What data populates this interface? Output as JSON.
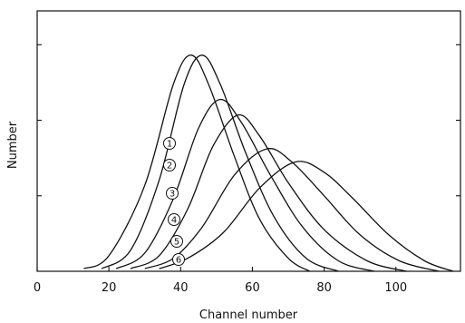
{
  "chart_data": {
    "type": "line",
    "xlabel": "Channel number",
    "ylabel": "Number",
    "xlim": [
      0,
      118
    ],
    "ylim": [
      0,
      1
    ],
    "x_ticks": [
      0,
      20,
      40,
      60,
      80,
      100
    ],
    "y_ticks_labeled": false,
    "grid": false,
    "series": [
      {
        "name": "1",
        "peak_x": 43,
        "peak_y": 0.83,
        "start_x": 13,
        "end_x": 76,
        "x": [
          13,
          20,
          30,
          38,
          43,
          48,
          55,
          62,
          70,
          76
        ],
        "y": [
          0.01,
          0.06,
          0.33,
          0.72,
          0.83,
          0.71,
          0.44,
          0.2,
          0.05,
          0.0
        ]
      },
      {
        "name": "2",
        "peak_x": 46,
        "peak_y": 0.83,
        "start_x": 18,
        "end_x": 84,
        "x": [
          18,
          26,
          34,
          41,
          46,
          51,
          58,
          66,
          75,
          84
        ],
        "y": [
          0.01,
          0.08,
          0.35,
          0.72,
          0.83,
          0.72,
          0.46,
          0.21,
          0.05,
          0.0
        ]
      },
      {
        "name": "3",
        "peak_x": 51,
        "peak_y": 0.66,
        "start_x": 22,
        "end_x": 94,
        "x": [
          22,
          30,
          38,
          45,
          51,
          57,
          65,
          74,
          84,
          94
        ],
        "y": [
          0.01,
          0.07,
          0.28,
          0.55,
          0.66,
          0.57,
          0.37,
          0.17,
          0.04,
          0.0
        ]
      },
      {
        "name": "4",
        "peak_x": 56,
        "peak_y": 0.6,
        "start_x": 26,
        "end_x": 103,
        "x": [
          26,
          34,
          42,
          49,
          56,
          62,
          70,
          80,
          92,
          103
        ],
        "y": [
          0.01,
          0.06,
          0.24,
          0.48,
          0.6,
          0.52,
          0.34,
          0.16,
          0.04,
          0.0
        ]
      },
      {
        "name": "5",
        "peak_x": 64,
        "peak_y": 0.47,
        "start_x": 30,
        "end_x": 112,
        "x": [
          30,
          38,
          46,
          55,
          64,
          71,
          80,
          90,
          101,
          112
        ],
        "y": [
          0.01,
          0.05,
          0.17,
          0.37,
          0.47,
          0.42,
          0.29,
          0.14,
          0.04,
          0.0
        ]
      },
      {
        "name": "6",
        "peak_x": 72,
        "peak_y": 0.42,
        "start_x": 34,
        "end_x": 116,
        "x": [
          34,
          42,
          52,
          62,
          72,
          80,
          88,
          98,
          108,
          116
        ],
        "y": [
          0.01,
          0.05,
          0.15,
          0.32,
          0.42,
          0.38,
          0.28,
          0.14,
          0.04,
          0.0
        ]
      }
    ]
  }
}
